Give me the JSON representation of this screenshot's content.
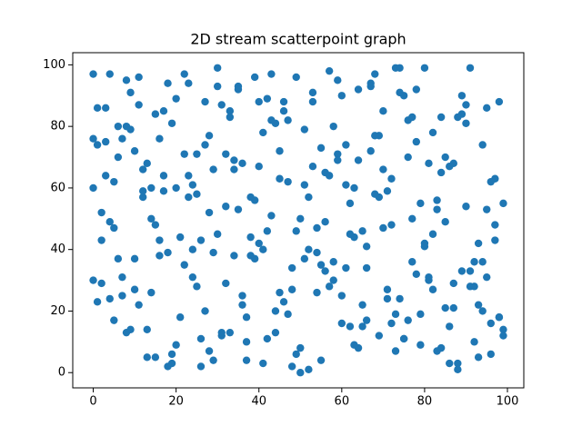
{
  "chart_data": {
    "type": "scatter",
    "title": "2D stream scatterpoint graph",
    "color": "#1f77b4",
    "grid": false,
    "xlim": [
      -4.95,
      103.95
    ],
    "ylim": [
      -4.95,
      103.95
    ],
    "xticks": [
      0,
      20,
      40,
      60,
      80,
      100
    ],
    "yticks": [
      0,
      20,
      40,
      60,
      80,
      100
    ],
    "x": [
      0,
      2,
      5,
      9,
      12,
      15,
      18,
      22,
      25,
      28,
      31,
      34,
      37,
      40,
      43,
      46,
      49,
      52,
      55,
      58,
      61,
      64,
      67,
      70,
      73,
      76,
      79,
      82,
      85,
      88,
      91,
      94,
      97,
      99,
      1,
      4,
      7,
      10,
      13,
      16,
      19,
      23,
      26,
      29,
      32,
      35,
      38,
      41,
      44,
      47,
      50,
      53,
      56,
      59,
      62,
      65,
      68,
      71,
      74,
      77,
      80,
      83,
      86,
      89,
      92,
      95,
      98,
      0,
      3,
      6,
      8,
      11,
      14,
      17,
      20,
      24,
      27,
      30,
      33,
      36,
      39,
      42,
      45,
      48,
      51,
      54,
      57,
      60,
      63,
      66,
      69,
      72,
      75,
      78,
      81,
      84,
      87,
      90,
      93,
      96,
      2,
      6,
      10,
      14,
      18,
      21,
      25,
      29,
      33,
      37,
      41,
      45,
      49,
      53,
      57,
      61,
      65,
      69,
      73,
      77,
      81,
      85,
      89,
      93,
      97,
      0,
      4,
      8,
      12,
      16,
      20,
      24,
      28,
      32,
      36,
      40,
      44,
      48,
      52,
      56,
      60,
      64,
      68,
      72,
      76,
      80,
      84,
      88,
      92,
      96,
      99,
      3,
      7,
      11,
      15,
      19,
      23,
      27,
      31,
      35,
      39,
      43,
      47,
      51,
      55,
      59,
      63,
      67,
      71,
      75,
      79,
      83,
      87,
      91,
      95,
      1,
      5,
      9,
      13,
      17,
      22,
      26,
      30,
      34,
      38,
      42,
      46,
      50,
      54,
      58,
      62,
      66,
      70,
      74,
      78,
      82,
      86,
      90,
      94,
      98,
      0,
      9,
      18,
      27,
      36,
      45,
      54,
      63,
      72,
      81,
      90,
      99,
      4,
      13,
      22,
      31,
      40,
      49,
      58,
      67,
      76,
      85,
      94,
      2,
      11,
      20,
      29,
      38,
      47,
      56,
      65,
      74,
      83,
      92,
      7,
      16,
      25,
      34,
      43,
      52,
      61,
      70,
      79,
      88,
      97,
      5,
      14,
      23,
      32,
      41,
      50,
      59,
      68,
      77,
      86,
      95,
      3,
      12,
      21,
      30,
      39,
      48,
      57,
      66,
      75,
      84,
      93,
      1,
      10,
      19,
      28,
      37,
      46,
      55,
      64,
      73,
      82,
      91,
      8,
      17,
      26,
      35,
      44,
      53,
      62,
      71,
      80,
      89,
      98,
      6,
      15,
      24,
      33,
      42,
      51,
      60,
      69,
      78,
      87,
      96
    ],
    "y": [
      97,
      43,
      17,
      91,
      66,
      84,
      2,
      35,
      58,
      77,
      12,
      69,
      4,
      88,
      51,
      23,
      96,
      40,
      73,
      30,
      61,
      8,
      94,
      47,
      19,
      82,
      55,
      27,
      70,
      3,
      99,
      36,
      63,
      14,
      86,
      49,
      25,
      72,
      5,
      38,
      81,
      57,
      11,
      66,
      29,
      93,
      44,
      78,
      20,
      62,
      0,
      88,
      33,
      71,
      15,
      46,
      97,
      59,
      24,
      83,
      41,
      7,
      67,
      90,
      28,
      53,
      18,
      76,
      64,
      37,
      95,
      22,
      50,
      85,
      9,
      31,
      74,
      45,
      13,
      68,
      56,
      89,
      26,
      2,
      79,
      39,
      98,
      16,
      60,
      34,
      77,
      48,
      11,
      92,
      30,
      65,
      21,
      87,
      42,
      6,
      52,
      80,
      27,
      60,
      94,
      18,
      71,
      39,
      85,
      10,
      3,
      63,
      46,
      91,
      28,
      74,
      15,
      57,
      99,
      36,
      68,
      21,
      84,
      5,
      43,
      30,
      97,
      13,
      59,
      76,
      89,
      40,
      7,
      54,
      22,
      67,
      81,
      34,
      1,
      49,
      25,
      92,
      58,
      16,
      70,
      42,
      8,
      83,
      36,
      62,
      12,
      75,
      31,
      96,
      48,
      6,
      64,
      20,
      87,
      53,
      37,
      82,
      19,
      61,
      4,
      95,
      44,
      72,
      27,
      90,
      9,
      56,
      68,
      33,
      86,
      23,
      47,
      79,
      14,
      64,
      71,
      2,
      93,
      38,
      57,
      11,
      85,
      50,
      26,
      80,
      45,
      17,
      66,
      99,
      32,
      78,
      3,
      54,
      20,
      88,
      60,
      14,
      39,
      88,
      25,
      72,
      47,
      9,
      63,
      31,
      81,
      55,
      24,
      68,
      97,
      13,
      42,
      6,
      36,
      93,
      17,
      49,
      74,
      29,
      87,
      60,
      4,
      38,
      82,
      65,
      22,
      91,
      53,
      10,
      76,
      43,
      28,
      66,
      97,
      57,
      34,
      85,
      19,
      1,
      48,
      62,
      26,
      94,
      71,
      40,
      8,
      69,
      77,
      50,
      15,
      31,
      86,
      57,
      44,
      99,
      96,
      27,
      64,
      41,
      11,
      83,
      22,
      74,
      37,
      3,
      52,
      18,
      88,
      35,
      69,
      7,
      45,
      28,
      80,
      59,
      43,
      92,
      13,
      67,
      55,
      24,
      99,
      33,
      18,
      70,
      5,
      61,
      83,
      46,
      37,
      90,
      12,
      75,
      29,
      16
    ]
  }
}
